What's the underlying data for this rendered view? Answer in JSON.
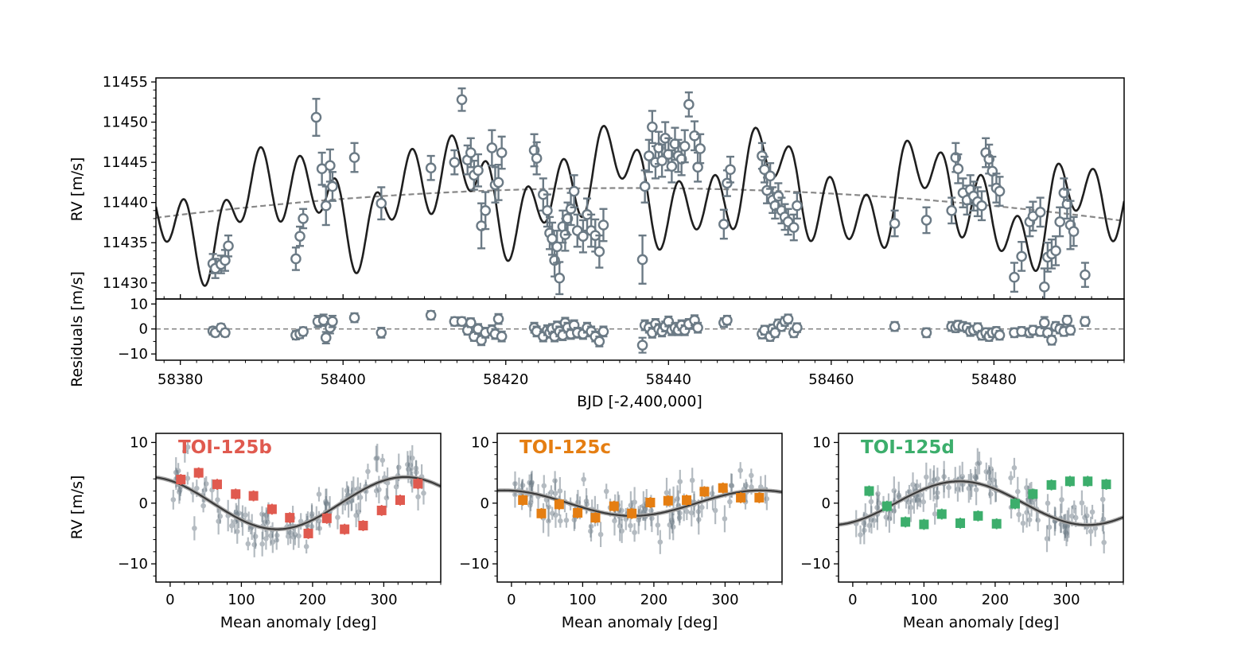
{
  "figure": {
    "top_panel": {
      "ylabel": "RV [m/s]",
      "yticks": [
        "11430",
        "11435",
        "11440",
        "11445",
        "11450",
        "11455"
      ],
      "ylim": [
        11428,
        11455.5
      ],
      "xlim": [
        58377,
        58496
      ],
      "colors": {
        "data": "#6b7a85",
        "model": "#1f1f1f",
        "trend": "#888888"
      }
    },
    "residual_panel": {
      "ylabel": "Residuals [m/s]",
      "yticks": [
        "−10",
        "0",
        "10"
      ],
      "ylim": [
        -12.5,
        12
      ],
      "xlabel": "BJD [-2,400,000]",
      "xticks": [
        "58380",
        "58400",
        "58420",
        "58440",
        "58460",
        "58480"
      ]
    },
    "phase_panels": [
      {
        "title": "TOI-125b",
        "color": "#e05a4f"
      },
      {
        "title": "TOI-125c",
        "color": "#e57e12"
      },
      {
        "title": "TOI-125d",
        "color": "#3cae6c"
      }
    ],
    "phase_common": {
      "ylabel": "RV [m/s]",
      "xlabel": "Mean anomaly [deg]",
      "xticks": [
        "0",
        "100",
        "200",
        "300"
      ],
      "yticks": [
        "−10",
        "0",
        "10"
      ],
      "xlim": [
        -20,
        380
      ],
      "ylim": [
        -13,
        11.5
      ]
    }
  },
  "chart_data": [
    {
      "type": "scatter",
      "title": "",
      "xlabel": "",
      "ylabel": "RV [m/s]",
      "xlim": [
        58377,
        58496
      ],
      "ylim": [
        11428,
        11455.5
      ],
      "series": [
        {
          "x": [
            58384.0,
            58384.3,
            58385.0,
            58385.5,
            58385.9,
            58394.2,
            58394.7,
            58395.1,
            58396.7,
            58397.4,
            58397.9,
            58398.4,
            58398.7,
            58401.4,
            58404.7,
            58410.8,
            58413.7,
            58414.6,
            58415.3,
            58415.7,
            58416.1,
            58416.6,
            58417.0,
            58417.5,
            58418.3,
            58418.7,
            58419.1,
            58419.5,
            58423.5,
            58423.8,
            58424.6,
            58425.1,
            58425.4,
            58425.7,
            58426.0,
            58426.3,
            58426.6,
            58427.0,
            58427.3,
            58427.6,
            58428.0,
            58428.4,
            58428.8,
            58429.5,
            58430.0,
            58430.5,
            58431.0,
            58431.5,
            58432.0,
            58436.8,
            58437.1,
            58437.6,
            58438.0,
            58438.4,
            58438.8,
            58439.2,
            58439.6,
            58440.0,
            58440.4,
            58440.8,
            58441.2,
            58441.6,
            58442.0,
            58442.5,
            58443.2,
            58443.6,
            58443.9,
            58446.8,
            58447.2,
            58447.6,
            58451.5,
            58451.8,
            58452.1,
            58452.5,
            58452.8,
            58453.1,
            58453.5,
            58453.9,
            58454.3,
            58454.7,
            58455.4,
            58455.8,
            58467.8,
            58471.7,
            58474.8,
            58475.3,
            58475.6,
            58476.2,
            58476.7,
            58477.1,
            58477.5,
            58478.0,
            58478.5,
            58479.0,
            58479.4,
            58479.8,
            58480.3,
            58480.7,
            58482.5,
            58483.4,
            58484.4,
            58484.8,
            58485.7,
            58486.2,
            58486.6,
            58487.1,
            58487.6,
            58488.1,
            58488.6,
            58489.0,
            58489.4,
            58489.8,
            58491.2
          ],
          "y": [
            11432.4,
            11431.8,
            11432.3,
            11432.8,
            11434.6,
            11433.0,
            11435.8,
            11438.0,
            11450.6,
            11444.2,
            11439.6,
            11444.6,
            11442.0,
            11445.6,
            11439.9,
            11444.3,
            11445.0,
            11452.8,
            11445.3,
            11446.2,
            11443.4,
            11444.0,
            11437.1,
            11439.0,
            11446.8,
            11442.2,
            11442.5,
            11446.2,
            11446.5,
            11445.5,
            11441.0,
            11439.0,
            11436.2,
            11435.5,
            11432.8,
            11434.5,
            11430.6,
            11437.0,
            11436.0,
            11438.0,
            11439.2,
            11441.4,
            11436.5,
            11435.8,
            11438.5,
            11436.5,
            11435.9,
            11433.9,
            11437.2,
            11432.9,
            11442.0,
            11445.8,
            11449.4,
            11445.0,
            11446.8,
            11445.2,
            11448.0,
            11446.0,
            11444.5,
            11447.3,
            11445.8,
            11445.4,
            11447.0,
            11452.2,
            11448.3,
            11444.4,
            11446.7,
            11437.3,
            11442.4,
            11444.1,
            11445.8,
            11444.1,
            11441.5,
            11443.3,
            11440.3,
            11439.6,
            11440.8,
            11439.0,
            11438.2,
            11437.6,
            11436.9,
            11439.6,
            11437.4,
            11437.8,
            11439.0,
            11445.6,
            11444.2,
            11441.2,
            11440.3,
            11441.6,
            11440.8,
            11440.1,
            11439.6,
            11446.2,
            11445.4,
            11443.9,
            11441.8,
            11441.4,
            11430.7,
            11433.3,
            11437.6,
            11438.3,
            11438.8,
            11429.5,
            11433.2,
            11433.6,
            11434.0,
            11437.6,
            11441.2,
            11439.8,
            11437.2,
            11436.4,
            11431.0
          ],
          "err": [
            1.2,
            1.2,
            1.1,
            1.3,
            1.3,
            1.4,
            1.2,
            1.2,
            2.3,
            2.0,
            2.4,
            2.0,
            1.8,
            1.8,
            2.0,
            1.5,
            1.5,
            1.4,
            1.8,
            1.8,
            1.8,
            2.0,
            2.8,
            2.3,
            2.2,
            2.2,
            2.2,
            2.0,
            2.0,
            2.0,
            2.0,
            2.0,
            2.0,
            2.0,
            2.0,
            2.0,
            2.0,
            2.0,
            2.0,
            2.0,
            2.0,
            2.0,
            2.0,
            2.0,
            2.0,
            2.0,
            2.0,
            2.0,
            2.0,
            3.0,
            2.0,
            2.0,
            2.0,
            2.0,
            2.0,
            2.0,
            2.0,
            2.0,
            2.0,
            2.0,
            2.0,
            2.0,
            2.0,
            1.5,
            1.8,
            1.8,
            1.8,
            1.8,
            1.6,
            1.6,
            1.6,
            1.6,
            1.6,
            1.6,
            1.6,
            1.6,
            1.6,
            1.6,
            1.6,
            1.6,
            1.6,
            1.6,
            1.6,
            1.6,
            1.6,
            1.8,
            1.8,
            1.8,
            1.8,
            1.8,
            1.8,
            1.8,
            1.8,
            1.8,
            1.8,
            1.8,
            1.8,
            1.8,
            1.8,
            1.8,
            1.8,
            1.8,
            1.8,
            2.3,
            1.8,
            1.8,
            1.8,
            1.8,
            1.8,
            1.8,
            3.0,
            1.8,
            1.5
          ]
        }
      ],
      "grid": false
    },
    {
      "type": "scatter",
      "title": "",
      "xlabel": "BJD [-2,400,000]",
      "ylabel": "Residuals [m/s]",
      "ylim": [
        -12.5,
        12
      ],
      "series": [
        {
          "x": [
            58384.0,
            58384.3,
            58385.0,
            58385.5,
            58394.2,
            58394.7,
            58395.1,
            58396.9,
            58397.6,
            58397.9,
            58398.4,
            58398.7,
            58401.4,
            58404.7,
            58410.8,
            58413.7,
            58414.6,
            58415.3,
            58415.7,
            58416.1,
            58416.6,
            58417.0,
            58417.5,
            58418.3,
            58418.7,
            58419.1,
            58419.5,
            58423.5,
            58423.8,
            58424.6,
            58425.1,
            58425.4,
            58425.7,
            58426.0,
            58426.3,
            58426.6,
            58427.0,
            58427.3,
            58427.6,
            58428.0,
            58428.4,
            58428.8,
            58429.5,
            58430.0,
            58430.5,
            58431.0,
            58431.5,
            58432.0,
            58436.8,
            58437.1,
            58437.6,
            58438.0,
            58438.4,
            58438.8,
            58439.2,
            58439.6,
            58440.0,
            58440.4,
            58440.8,
            58441.2,
            58441.6,
            58442.0,
            58442.5,
            58443.2,
            58443.6,
            58446.8,
            58447.2,
            58451.5,
            58451.8,
            58452.5,
            58452.8,
            58453.1,
            58453.5,
            58453.9,
            58454.3,
            58454.7,
            58455.4,
            58455.8,
            58467.8,
            58471.7,
            58474.8,
            58475.3,
            58475.6,
            58476.2,
            58476.7,
            58477.1,
            58477.5,
            58478.0,
            58478.5,
            58479.0,
            58479.4,
            58479.8,
            58480.3,
            58480.7,
            58482.5,
            58483.4,
            58484.4,
            58484.8,
            58485.7,
            58486.2,
            58486.6,
            58487.1,
            58487.6,
            58488.1,
            58488.6,
            58489.0,
            58489.4,
            58491.2
          ],
          "y": [
            -0.8,
            -1.5,
            0.5,
            -1.5,
            -2.5,
            -2.0,
            -1.0,
            3.0,
            3.5,
            -3.5,
            0.5,
            3.0,
            4.5,
            -1.5,
            5.5,
            3.0,
            3.0,
            -0.5,
            2.5,
            -3.0,
            0.0,
            -4.5,
            -1.5,
            -0.5,
            -2.0,
            4.0,
            -3.0,
            0.5,
            -1.0,
            -3.0,
            -0.5,
            -1.5,
            0.0,
            -3.0,
            1.0,
            -1.0,
            -2.5,
            2.5,
            0.5,
            -2.0,
            1.5,
            -1.5,
            -2.0,
            0.5,
            -1.0,
            -3.0,
            -5.0,
            -1.0,
            -6.5,
            1.5,
            0.5,
            -1.5,
            2.0,
            0.0,
            -1.0,
            1.0,
            3.0,
            -0.5,
            0.5,
            -0.5,
            1.5,
            -0.5,
            2.0,
            3.5,
            0.5,
            2.5,
            3.5,
            -2.0,
            -0.5,
            -3.0,
            0.0,
            -1.5,
            2.0,
            1.0,
            3.0,
            4.0,
            -1.5,
            0.5,
            1.0,
            -1.5,
            1.0,
            0.5,
            1.5,
            1.0,
            0.5,
            -1.0,
            -0.5,
            0.5,
            -2.5,
            -1.5,
            -3.0,
            -1.5,
            -1.0,
            -2.5,
            -1.5,
            -1.0,
            -1.5,
            -0.5,
            -1.0,
            2.5,
            -1.5,
            -4.5,
            1.0,
            0.0,
            -1.0,
            3.5,
            -0.5,
            3.0
          ],
          "err": [
            1.5,
            1.5,
            1.5,
            1.5,
            1.7,
            1.7,
            1.7,
            2.3,
            2.3,
            2.3,
            2.3,
            2.3,
            1.8,
            2.0,
            1.7,
            1.7,
            1.7,
            1.8,
            1.8,
            1.8,
            2.0,
            2.0,
            2.0,
            2.0,
            2.0,
            2.0,
            2.0,
            2.0,
            2.0,
            2.0,
            2.0,
            2.0,
            2.0,
            2.0,
            2.0,
            2.0,
            2.0,
            2.0,
            2.0,
            2.0,
            2.0,
            2.0,
            2.0,
            2.0,
            2.0,
            2.0,
            2.0,
            2.0,
            3.0,
            2.0,
            2.0,
            2.0,
            2.0,
            2.0,
            2.0,
            2.0,
            2.0,
            2.0,
            2.0,
            2.0,
            2.0,
            2.0,
            2.0,
            2.0,
            2.0,
            1.8,
            1.8,
            1.8,
            1.8,
            1.8,
            1.8,
            1.8,
            1.8,
            1.8,
            1.8,
            1.8,
            1.8,
            1.8,
            1.8,
            1.8,
            1.8,
            1.8,
            1.8,
            1.8,
            1.8,
            1.8,
            1.8,
            1.8,
            1.8,
            1.8,
            1.8,
            1.8,
            1.8,
            1.8,
            1.8,
            1.8,
            1.8,
            1.8,
            1.8,
            2.3,
            1.8,
            1.8,
            1.8,
            1.8,
            1.8,
            1.8,
            1.8,
            1.8
          ]
        }
      ],
      "grid": false
    },
    {
      "type": "scatter",
      "title": "TOI-125b",
      "xlabel": "Mean anomaly [deg]",
      "ylabel": "RV [m/s]",
      "xlim": [
        -20,
        380
      ],
      "ylim": [
        -13,
        11.5
      ],
      "series": [
        {
          "x": [
            15,
            40,
            66,
            92,
            117,
            143,
            168,
            194,
            220,
            245,
            271,
            297,
            323,
            348
          ],
          "y": [
            3.9,
            5.0,
            3.1,
            1.5,
            1.2,
            -1.0,
            -2.4,
            -5.0,
            -2.5,
            -4.3,
            -3.7,
            -1.2,
            0.5,
            3.2
          ]
        }
      ],
      "grid": false
    },
    {
      "type": "scatter",
      "title": "TOI-125c",
      "xlabel": "Mean anomaly [deg]",
      "ylabel": "RV [m/s]",
      "xlim": [
        -20,
        380
      ],
      "ylim": [
        -13,
        11.5
      ],
      "series": [
        {
          "x": [
            16,
            42,
            67,
            93,
            118,
            144,
            169,
            195,
            220,
            246,
            271,
            297,
            322,
            348
          ],
          "y": [
            0.5,
            -1.7,
            -0.2,
            -1.6,
            -2.4,
            -0.5,
            -1.7,
            0.1,
            0.4,
            0.5,
            1.9,
            2.5,
            0.9,
            0.9
          ]
        }
      ],
      "grid": false
    },
    {
      "type": "scatter",
      "title": "TOI-125d",
      "xlabel": "Mean anomaly [deg]",
      "ylabel": "RV [m/s]",
      "xlim": [
        -20,
        380
      ],
      "ylim": [
        -13,
        11.5
      ],
      "series": [
        {
          "x": [
            23,
            48,
            74,
            100,
            125,
            151,
            176,
            202,
            228,
            253,
            279,
            305,
            330,
            356
          ],
          "y": [
            2.0,
            -0.5,
            -3.1,
            -3.5,
            -1.8,
            -3.3,
            -2.1,
            -3.4,
            -0.1,
            1.5,
            3.0,
            3.6,
            3.6,
            3.1
          ]
        }
      ],
      "grid": false
    }
  ]
}
